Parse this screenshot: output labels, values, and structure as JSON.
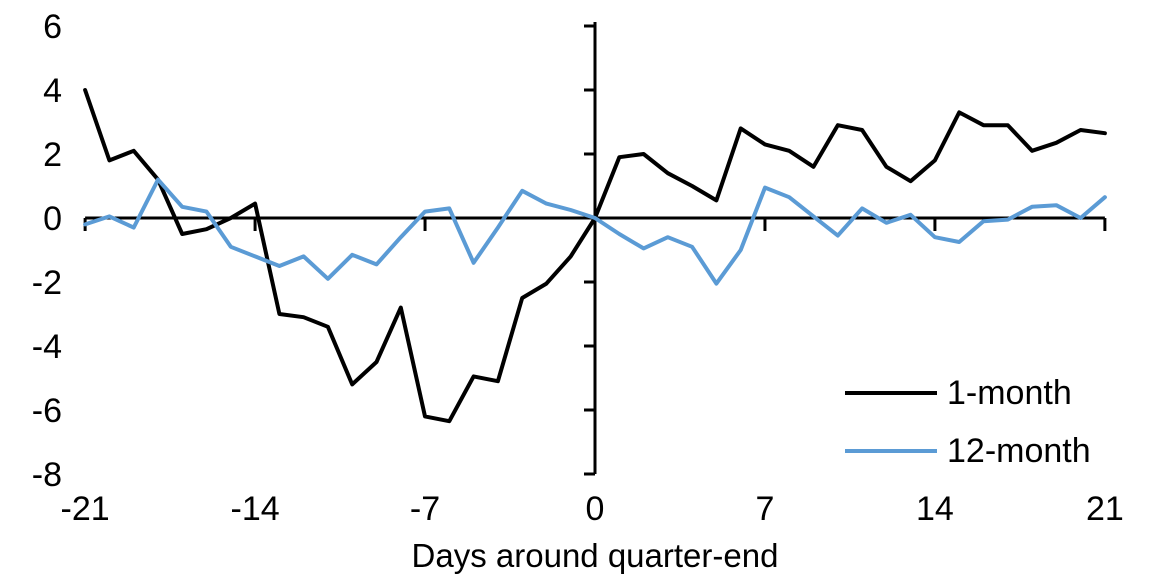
{
  "chart_data": {
    "type": "line",
    "title": "",
    "xlabel": "Days around quarter-end",
    "ylabel": "",
    "x": [
      -21,
      -20,
      -19,
      -18,
      -17,
      -16,
      -15,
      -14,
      -13,
      -12,
      -11,
      -10,
      -9,
      -8,
      -7,
      -6,
      -5,
      -4,
      -3,
      -2,
      -1,
      0,
      1,
      2,
      3,
      4,
      5,
      6,
      7,
      8,
      9,
      10,
      11,
      12,
      13,
      14,
      15,
      16,
      17,
      18,
      19,
      20,
      21
    ],
    "series": [
      {
        "name": "1-month",
        "color": "#000000",
        "values": [
          4.0,
          1.8,
          2.1,
          1.2,
          -0.5,
          -0.35,
          0.0,
          0.45,
          -3.0,
          -3.1,
          -3.4,
          -5.2,
          -4.5,
          -2.8,
          -6.2,
          -6.35,
          -4.95,
          -5.1,
          -2.5,
          -2.05,
          -1.2,
          0.0,
          1.9,
          2.0,
          1.4,
          1.0,
          0.55,
          2.8,
          2.3,
          2.1,
          1.6,
          2.9,
          2.75,
          1.6,
          1.15,
          1.8,
          3.3,
          2.9,
          2.9,
          2.1,
          2.35,
          2.75,
          2.65
        ]
      },
      {
        "name": "12-month",
        "color": "#5B9BD5",
        "values": [
          -0.2,
          0.05,
          -0.3,
          1.2,
          0.35,
          0.2,
          -0.9,
          -1.2,
          -1.5,
          -1.2,
          -1.9,
          -1.15,
          -1.45,
          -0.6,
          0.2,
          0.3,
          -1.4,
          -0.3,
          0.85,
          0.45,
          0.25,
          0.0,
          -0.5,
          -0.95,
          -0.6,
          -0.9,
          -2.05,
          -1.0,
          0.95,
          0.65,
          0.05,
          -0.55,
          0.3,
          -0.15,
          0.1,
          -0.6,
          -0.75,
          -0.1,
          -0.05,
          0.35,
          0.4,
          0.0,
          0.65
        ]
      }
    ],
    "xlim": [
      -21,
      21
    ],
    "ylim": [
      -8,
      6
    ],
    "x_ticks": [
      -21,
      -14,
      -7,
      0,
      7,
      14,
      21
    ],
    "y_ticks": [
      6,
      4,
      2,
      0,
      -2,
      -4,
      -6,
      -8
    ],
    "grid": false,
    "legend_position": "inside-bottom-right",
    "axis_color": "#000000"
  },
  "legend": {
    "items": [
      {
        "label": "1-month",
        "color": "#000000"
      },
      {
        "label": "12-month",
        "color": "#5B9BD5"
      }
    ]
  },
  "axis": {
    "x_title": "Days around quarter-end"
  }
}
